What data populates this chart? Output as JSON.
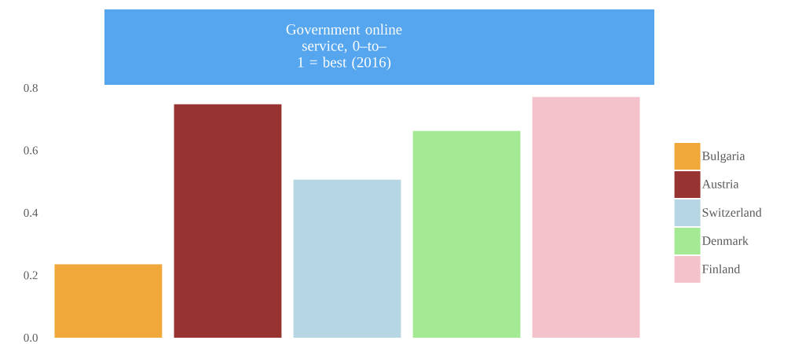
{
  "chart_data": {
    "type": "bar",
    "title": "Government online service, 0–to–1 = best (2016)",
    "categories": [
      null
    ],
    "series": [
      {
        "name": "Bulgaria",
        "color": "#f0a83a",
        "values": [
          0.235
        ]
      },
      {
        "name": "Austria",
        "color": "#973431",
        "values": [
          0.748
        ]
      },
      {
        "name": "Switzerland",
        "color": "#b5d6e2",
        "values": [
          0.506
        ]
      },
      {
        "name": "Denmark",
        "color": "#a4e993",
        "values": [
          0.662
        ]
      },
      {
        "name": "Finland",
        "color": "#f4c2cb",
        "values": [
          0.771
        ]
      }
    ],
    "ylim": [
      0,
      0.8
    ],
    "yticks": [
      {
        "value": 0,
        "label": "0.0"
      },
      0.2,
      0.4,
      0.6,
      0.8
    ],
    "legend": "right",
    "tick_labels": "y"
  }
}
